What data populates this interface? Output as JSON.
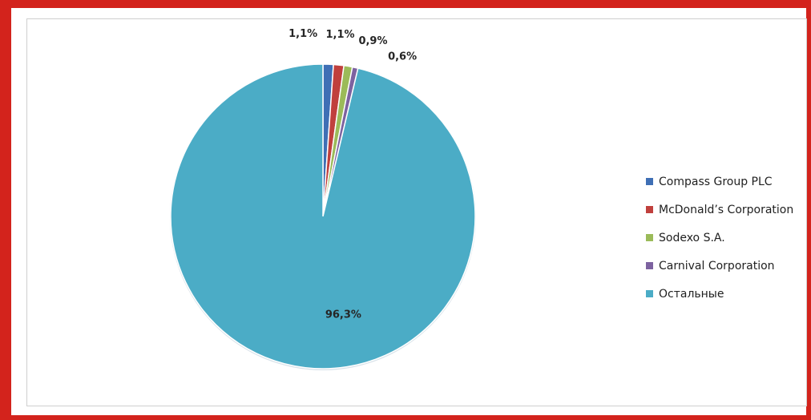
{
  "chart_data": {
    "type": "pie",
    "title": "",
    "legend_position": "right",
    "slices": [
      {
        "name": "Compass Group PLC",
        "value": 1.1,
        "label": "1,1%",
        "color": "#3f6fb5"
      },
      {
        "name": "McDonald’s Corporation",
        "value": 1.1,
        "label": "1,1%",
        "color": "#c0403d"
      },
      {
        "name": "Sodexo S.A.",
        "value": 0.9,
        "label": "0,9%",
        "color": "#9bbb59"
      },
      {
        "name": "Carnival Corporation",
        "value": 0.6,
        "label": "0,6%",
        "color": "#7d62a0"
      },
      {
        "name": "Остальные",
        "value": 96.3,
        "label": "96,3%",
        "color": "#4bacc6"
      }
    ]
  }
}
